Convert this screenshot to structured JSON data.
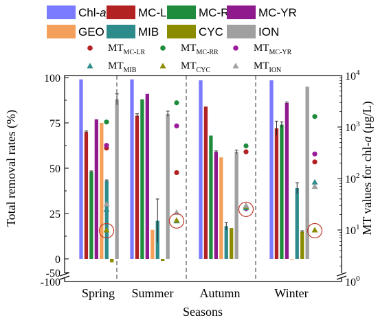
{
  "chart_data": {
    "type": "bar",
    "xlabel": "Seasons",
    "ylabel_left": "Total removal rates (%)",
    "ylabel_right": "MT values for chl-a (μg/L)",
    "categories": [
      "Spring",
      "Summer",
      "Autumn",
      "Winter"
    ],
    "y_left_ticks": [
      "100",
      "75",
      "50",
      "25",
      "0",
      "-50",
      "-100"
    ],
    "y_right_ticks": [
      {
        "base": "10",
        "exp": "4"
      },
      {
        "base": "10",
        "exp": "3"
      },
      {
        "base": "10",
        "exp": "2"
      },
      {
        "base": "10",
        "exp": "1"
      },
      {
        "base": "10",
        "exp": "0"
      }
    ],
    "y_left_scale": "linear with axis break between 0 and -50",
    "y_right_scale": "log",
    "legend_placement": "top",
    "series": [
      {
        "name": "Chl-a",
        "color": "#7b7bff",
        "values": [
          99,
          99,
          98.5,
          98.5
        ],
        "err": [
          0,
          0,
          0,
          0
        ]
      },
      {
        "name": "MC-LR",
        "color": "#b22222",
        "values": [
          70,
          79,
          84,
          72
        ],
        "err": [
          0.5,
          1,
          0,
          4
        ]
      },
      {
        "name": "MC-RR",
        "color": "#1e8c3c",
        "values": [
          48,
          88,
          68,
          74
        ],
        "err": [
          0.5,
          0,
          0,
          1.5
        ]
      },
      {
        "name": "MC-YR",
        "color": "#8e1a8e",
        "values": [
          77,
          91,
          59,
          86
        ],
        "err": [
          0,
          0,
          0.5,
          0.5
        ]
      },
      {
        "name": "GEO",
        "color": "#f5a05a",
        "values": [
          75,
          16,
          56,
          -2
        ],
        "err": [
          0,
          0,
          0,
          0
        ]
      },
      {
        "name": "MIB",
        "color": "#2e8b8b",
        "values": [
          43,
          21,
          18,
          39
        ],
        "err": [
          0.5,
          12,
          2,
          3
        ]
      },
      {
        "name": "CYC",
        "color": "#8b8b00",
        "values": [
          -10,
          -6,
          17,
          15
        ],
        "err": [
          0,
          0,
          0,
          0.5
        ]
      },
      {
        "name": "ION",
        "color": "#a0a0a0",
        "values": [
          88,
          80,
          59,
          95
        ],
        "err": [
          3,
          1.5,
          1,
          0
        ]
      }
    ],
    "mt_series": [
      {
        "name": "MT",
        "sub": "MC-LR",
        "marker": "circle",
        "color": "#b22222",
        "values": [
          390,
          130,
          330,
          210
        ]
      },
      {
        "name": "MT",
        "sub": "MC-RR",
        "marker": "circle",
        "color": "#1e8c3c",
        "values": [
          1250,
          2950,
          430,
          1600
        ]
      },
      {
        "name": "MT",
        "sub": "MC-YR",
        "marker": "circle",
        "color": "#9b1b9b",
        "values": [
          440,
          1050,
          26,
          300
        ]
      },
      {
        "name": "MT",
        "sub": "MIB",
        "marker": "triangle",
        "color": "#2e8b8b",
        "values": [
          25,
          15,
          27,
          85
        ]
      },
      {
        "name": "MT",
        "sub": "CYC",
        "marker": "triangle",
        "color": "#8b8b00",
        "values": [
          10,
          15.5,
          29,
          10
        ]
      },
      {
        "name": "MT",
        "sub": "ION",
        "marker": "triangle",
        "color": "#a0a0a0",
        "values": [
          32,
          22,
          30,
          70
        ]
      }
    ],
    "annotations": [
      "red circles highlight MT values near 10 μg/L"
    ],
    "grid": false
  }
}
